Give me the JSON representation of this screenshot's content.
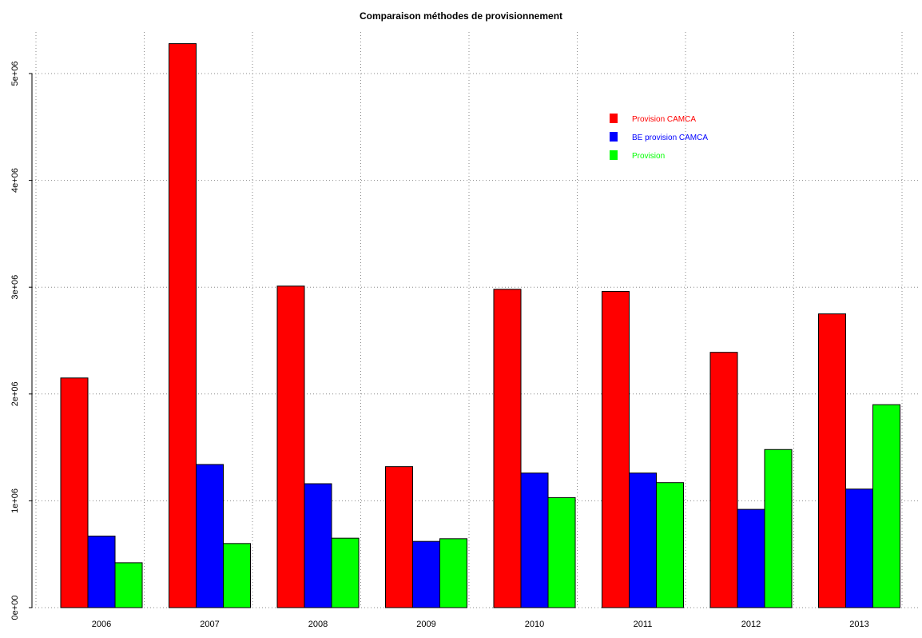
{
  "chart_data": {
    "type": "bar",
    "title": "Comparaison méthodes de provisionnement",
    "xlabel": "",
    "ylabel": "",
    "categories": [
      "2006",
      "2007",
      "2008",
      "2009",
      "2010",
      "2011",
      "2012",
      "2013"
    ],
    "series": [
      {
        "name": "Provision CAMCA",
        "color": "#ff0000",
        "values": [
          2150000,
          5280000,
          3010000,
          1320000,
          2980000,
          2960000,
          2390000,
          2750000
        ]
      },
      {
        "name": "BE provision CAMCA",
        "color": "#0000ff",
        "values": [
          670000,
          1340000,
          1160000,
          620000,
          1260000,
          1260000,
          920000,
          1110000
        ]
      },
      {
        "name": "Provision",
        "color": "#00ff00",
        "values": [
          420000,
          600000,
          650000,
          645000,
          1030000,
          1170000,
          1480000,
          1900000
        ]
      }
    ],
    "ylim": [
      0,
      5300000
    ],
    "yticks": [
      0,
      1000000,
      2000000,
      3000000,
      4000000,
      5000000
    ],
    "ytick_labels": [
      "0e+00",
      "1e+06",
      "2e+06",
      "3e+06",
      "4e+06",
      "5e+06"
    ],
    "grid": true,
    "legend_position": "top-right"
  }
}
